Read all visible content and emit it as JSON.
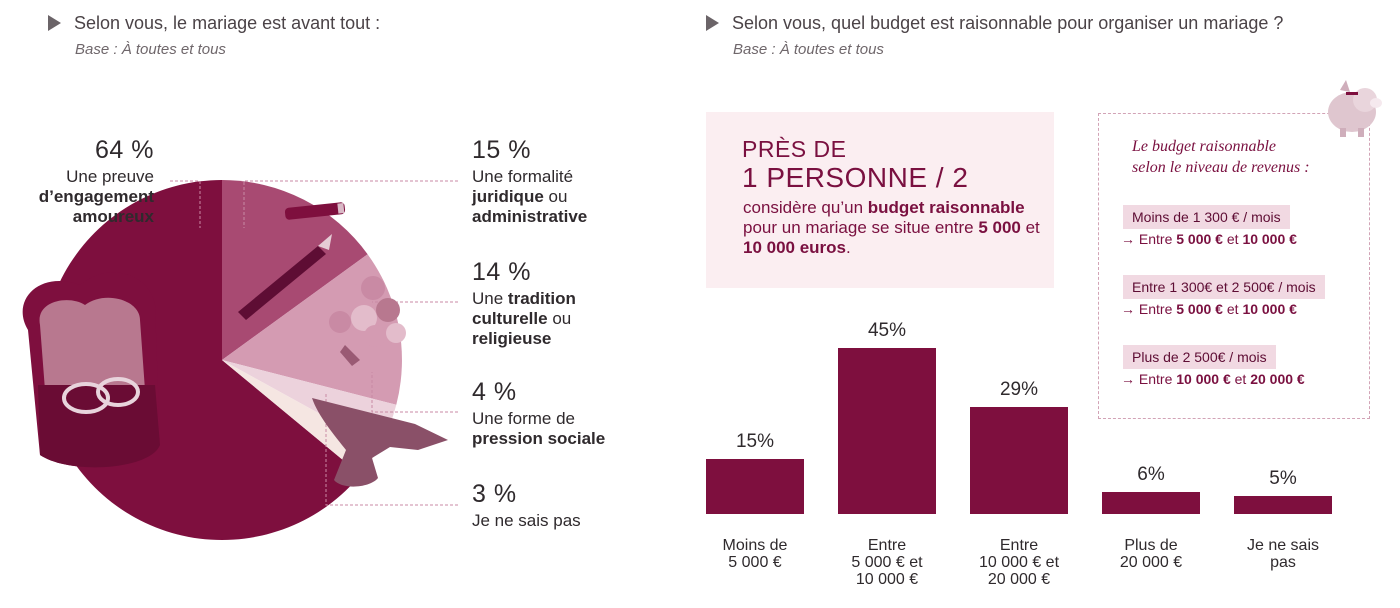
{
  "left_question": {
    "title": "Selon vous, le mariage est avant tout :",
    "base": "Base : À toutes et tous"
  },
  "right_question": {
    "title": "Selon vous, quel budget est raisonnable pour organiser un mariage ?",
    "base": "Base : À toutes et tous"
  },
  "pie_labels": [
    {
      "pct": "64 %",
      "lines": [
        {
          "parts": [
            {
              "t": "Une preuve",
              "b": false
            }
          ]
        },
        {
          "parts": [
            {
              "t": "d’engagement",
              "b": true
            }
          ]
        },
        {
          "parts": [
            {
              "t": "amoureux",
              "b": true
            }
          ]
        }
      ]
    },
    {
      "pct": "15 %",
      "lines": [
        {
          "parts": [
            {
              "t": "Une formalité",
              "b": false
            }
          ]
        },
        {
          "parts": [
            {
              "t": "juridique",
              "b": true
            },
            {
              "t": " ou",
              "b": false
            }
          ]
        },
        {
          "parts": [
            {
              "t": "administrative",
              "b": true
            }
          ]
        }
      ]
    },
    {
      "pct": "14 %",
      "lines": [
        {
          "parts": [
            {
              "t": "Une ",
              "b": false
            },
            {
              "t": "tradition",
              "b": true
            }
          ]
        },
        {
          "parts": [
            {
              "t": "culturelle",
              "b": true
            },
            {
              "t": " ou",
              "b": false
            }
          ]
        },
        {
          "parts": [
            {
              "t": "religieuse",
              "b": true
            }
          ]
        }
      ]
    },
    {
      "pct": "4 %",
      "lines": [
        {
          "parts": [
            {
              "t": "Une forme de",
              "b": false
            }
          ]
        },
        {
          "parts": [
            {
              "t": "pression sociale",
              "b": true
            }
          ]
        }
      ]
    },
    {
      "pct": "3 %",
      "lines": [
        {
          "parts": [
            {
              "t": "Je ne sais pas",
              "b": false
            }
          ]
        }
      ]
    }
  ],
  "callout": {
    "pres": "PRÈS DE",
    "big": "1 PERSONNE / 2",
    "body": [
      {
        "t": "considère qu’un ",
        "b": false
      },
      {
        "t": "budget raisonnable",
        "b": true
      },
      {
        "t": " pour un mariage se situe entre ",
        "b": false
      },
      {
        "t": "5 000",
        "b": true
      },
      {
        "t": " et ",
        "b": false
      },
      {
        "t": "10 000 euros",
        "b": true
      },
      {
        "t": ".",
        "b": false
      }
    ]
  },
  "income_box": {
    "title_lines": [
      "Le budget raisonnable",
      "selon le niveau de revenus :"
    ],
    "items": [
      {
        "tag": [
          {
            "t": "Moins de 1 300 € ",
            "b": false
          },
          {
            "t": "/ mois",
            "b": false
          }
        ],
        "range": [
          {
            "t": "→ Entre ",
            "b": false
          },
          {
            "t": "5 000 €",
            "b": true
          },
          {
            "t": " et ",
            "b": false
          },
          {
            "t": "10 000 €",
            "b": true
          }
        ]
      },
      {
        "tag": [
          {
            "t": "Entre 1 300€ et 2 500€ ",
            "b": false
          },
          {
            "t": "/ mois",
            "b": false
          }
        ],
        "range": [
          {
            "t": "→ Entre ",
            "b": false
          },
          {
            "t": "5 000 €",
            "b": true
          },
          {
            "t": " et ",
            "b": false
          },
          {
            "t": "10 000 €",
            "b": true
          }
        ]
      },
      {
        "tag": [
          {
            "t": "Plus de 2 500€ ",
            "b": false
          },
          {
            "t": "/ mois",
            "b": false
          }
        ],
        "range": [
          {
            "t": "→ Entre ",
            "b": false
          },
          {
            "t": "10 000 €",
            "b": true
          },
          {
            "t": " et ",
            "b": false
          },
          {
            "t": "20 000 €",
            "b": true
          }
        ]
      }
    ]
  },
  "colors": {
    "primary": "#7e0f3e",
    "pie": [
      "#7e0f3e",
      "#a84a72",
      "#d49bb2",
      "#ecd2dc",
      "#f5e6e2"
    ],
    "pink_bg": "#fbeef1",
    "tag_bg": "#f1d9e2"
  },
  "chart_data": [
    {
      "type": "pie",
      "title": "Selon vous, le mariage est avant tout :",
      "categories": [
        "Une preuve d’engagement amoureux",
        "Une formalité juridique ou administrative",
        "Une tradition culturelle ou religieuse",
        "Une forme de pression sociale",
        "Je ne sais pas"
      ],
      "values": [
        64,
        15,
        14,
        4,
        3
      ],
      "value_labels": [
        "64 %",
        "15 %",
        "14 %",
        "4 %",
        "3 %"
      ]
    },
    {
      "type": "bar",
      "title": "Selon vous, quel budget est raisonnable pour organiser un mariage ?",
      "categories": [
        [
          "Moins de",
          "5 000 €"
        ],
        [
          "Entre",
          "5 000 € et",
          "10 000 €"
        ],
        [
          "Entre",
          "10 000 € et",
          "20 000 €"
        ],
        [
          "Plus de",
          "20 000 €"
        ],
        [
          "Je ne sais",
          "pas"
        ]
      ],
      "values": [
        15,
        45,
        29,
        6,
        5
      ],
      "value_labels": [
        "15%",
        "45%",
        "29%",
        "6%",
        "5%"
      ],
      "ylim": [
        0,
        45
      ]
    }
  ]
}
